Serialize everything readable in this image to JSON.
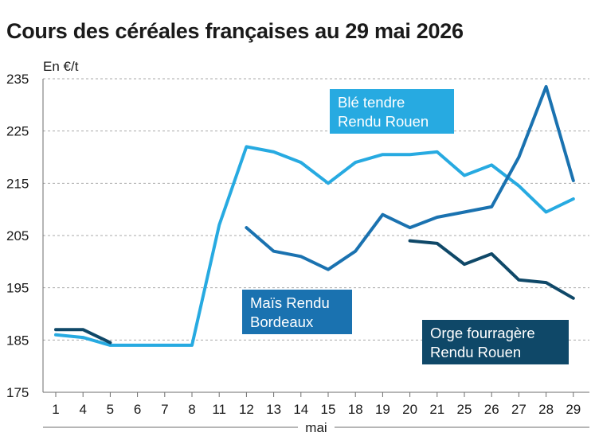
{
  "page": {
    "title": "Cours des céréales françaises au 29 mai 2026"
  },
  "chart_data": {
    "type": "line",
    "title": "Cours des céréales françaises au 29 mai 2026",
    "ylabel": "En €/t",
    "xlabel": "mai",
    "ylim": [
      175,
      235
    ],
    "yticks": [
      175,
      185,
      195,
      205,
      215,
      225,
      235
    ],
    "grid": true,
    "categories": [
      "1",
      "4",
      "5",
      "6",
      "7",
      "8",
      "11",
      "12",
      "13",
      "14",
      "15",
      "18",
      "19",
      "20",
      "21",
      "25",
      "26",
      "27",
      "28",
      "29"
    ],
    "series": [
      {
        "name": "Blé tendre Rendu Rouen",
        "label_lines": [
          "Blé tendre",
          "Rendu Rouen"
        ],
        "color": "#27aae1",
        "label_color": "#27aae1",
        "values": [
          186,
          185.5,
          184,
          184,
          184,
          184,
          207,
          222,
          221,
          219,
          215,
          219,
          220.5,
          220.5,
          221,
          216.5,
          218.5,
          214.5,
          209.5,
          212
        ]
      },
      {
        "name": "Maïs Rendu Bordeaux",
        "label_lines": [
          "Maïs Rendu",
          "Bordeaux"
        ],
        "color": "#1a72b0",
        "label_color": "#1a72b0",
        "values": [
          null,
          null,
          null,
          null,
          null,
          null,
          null,
          206.5,
          202,
          201,
          198.5,
          202,
          209,
          206.5,
          208.5,
          209.5,
          210.5,
          220,
          233.5,
          215.5
        ]
      },
      {
        "name": "Orge fourragère Rendu Rouen",
        "label_lines": [
          "Orge fourragère",
          "Rendu Rouen"
        ],
        "color": "#0f4868",
        "label_color": "#0f4868",
        "values": [
          187,
          187,
          184.5,
          null,
          null,
          null,
          null,
          null,
          null,
          null,
          null,
          null,
          null,
          204,
          203.5,
          199.5,
          201.5,
          196.5,
          196,
          193
        ]
      }
    ]
  }
}
